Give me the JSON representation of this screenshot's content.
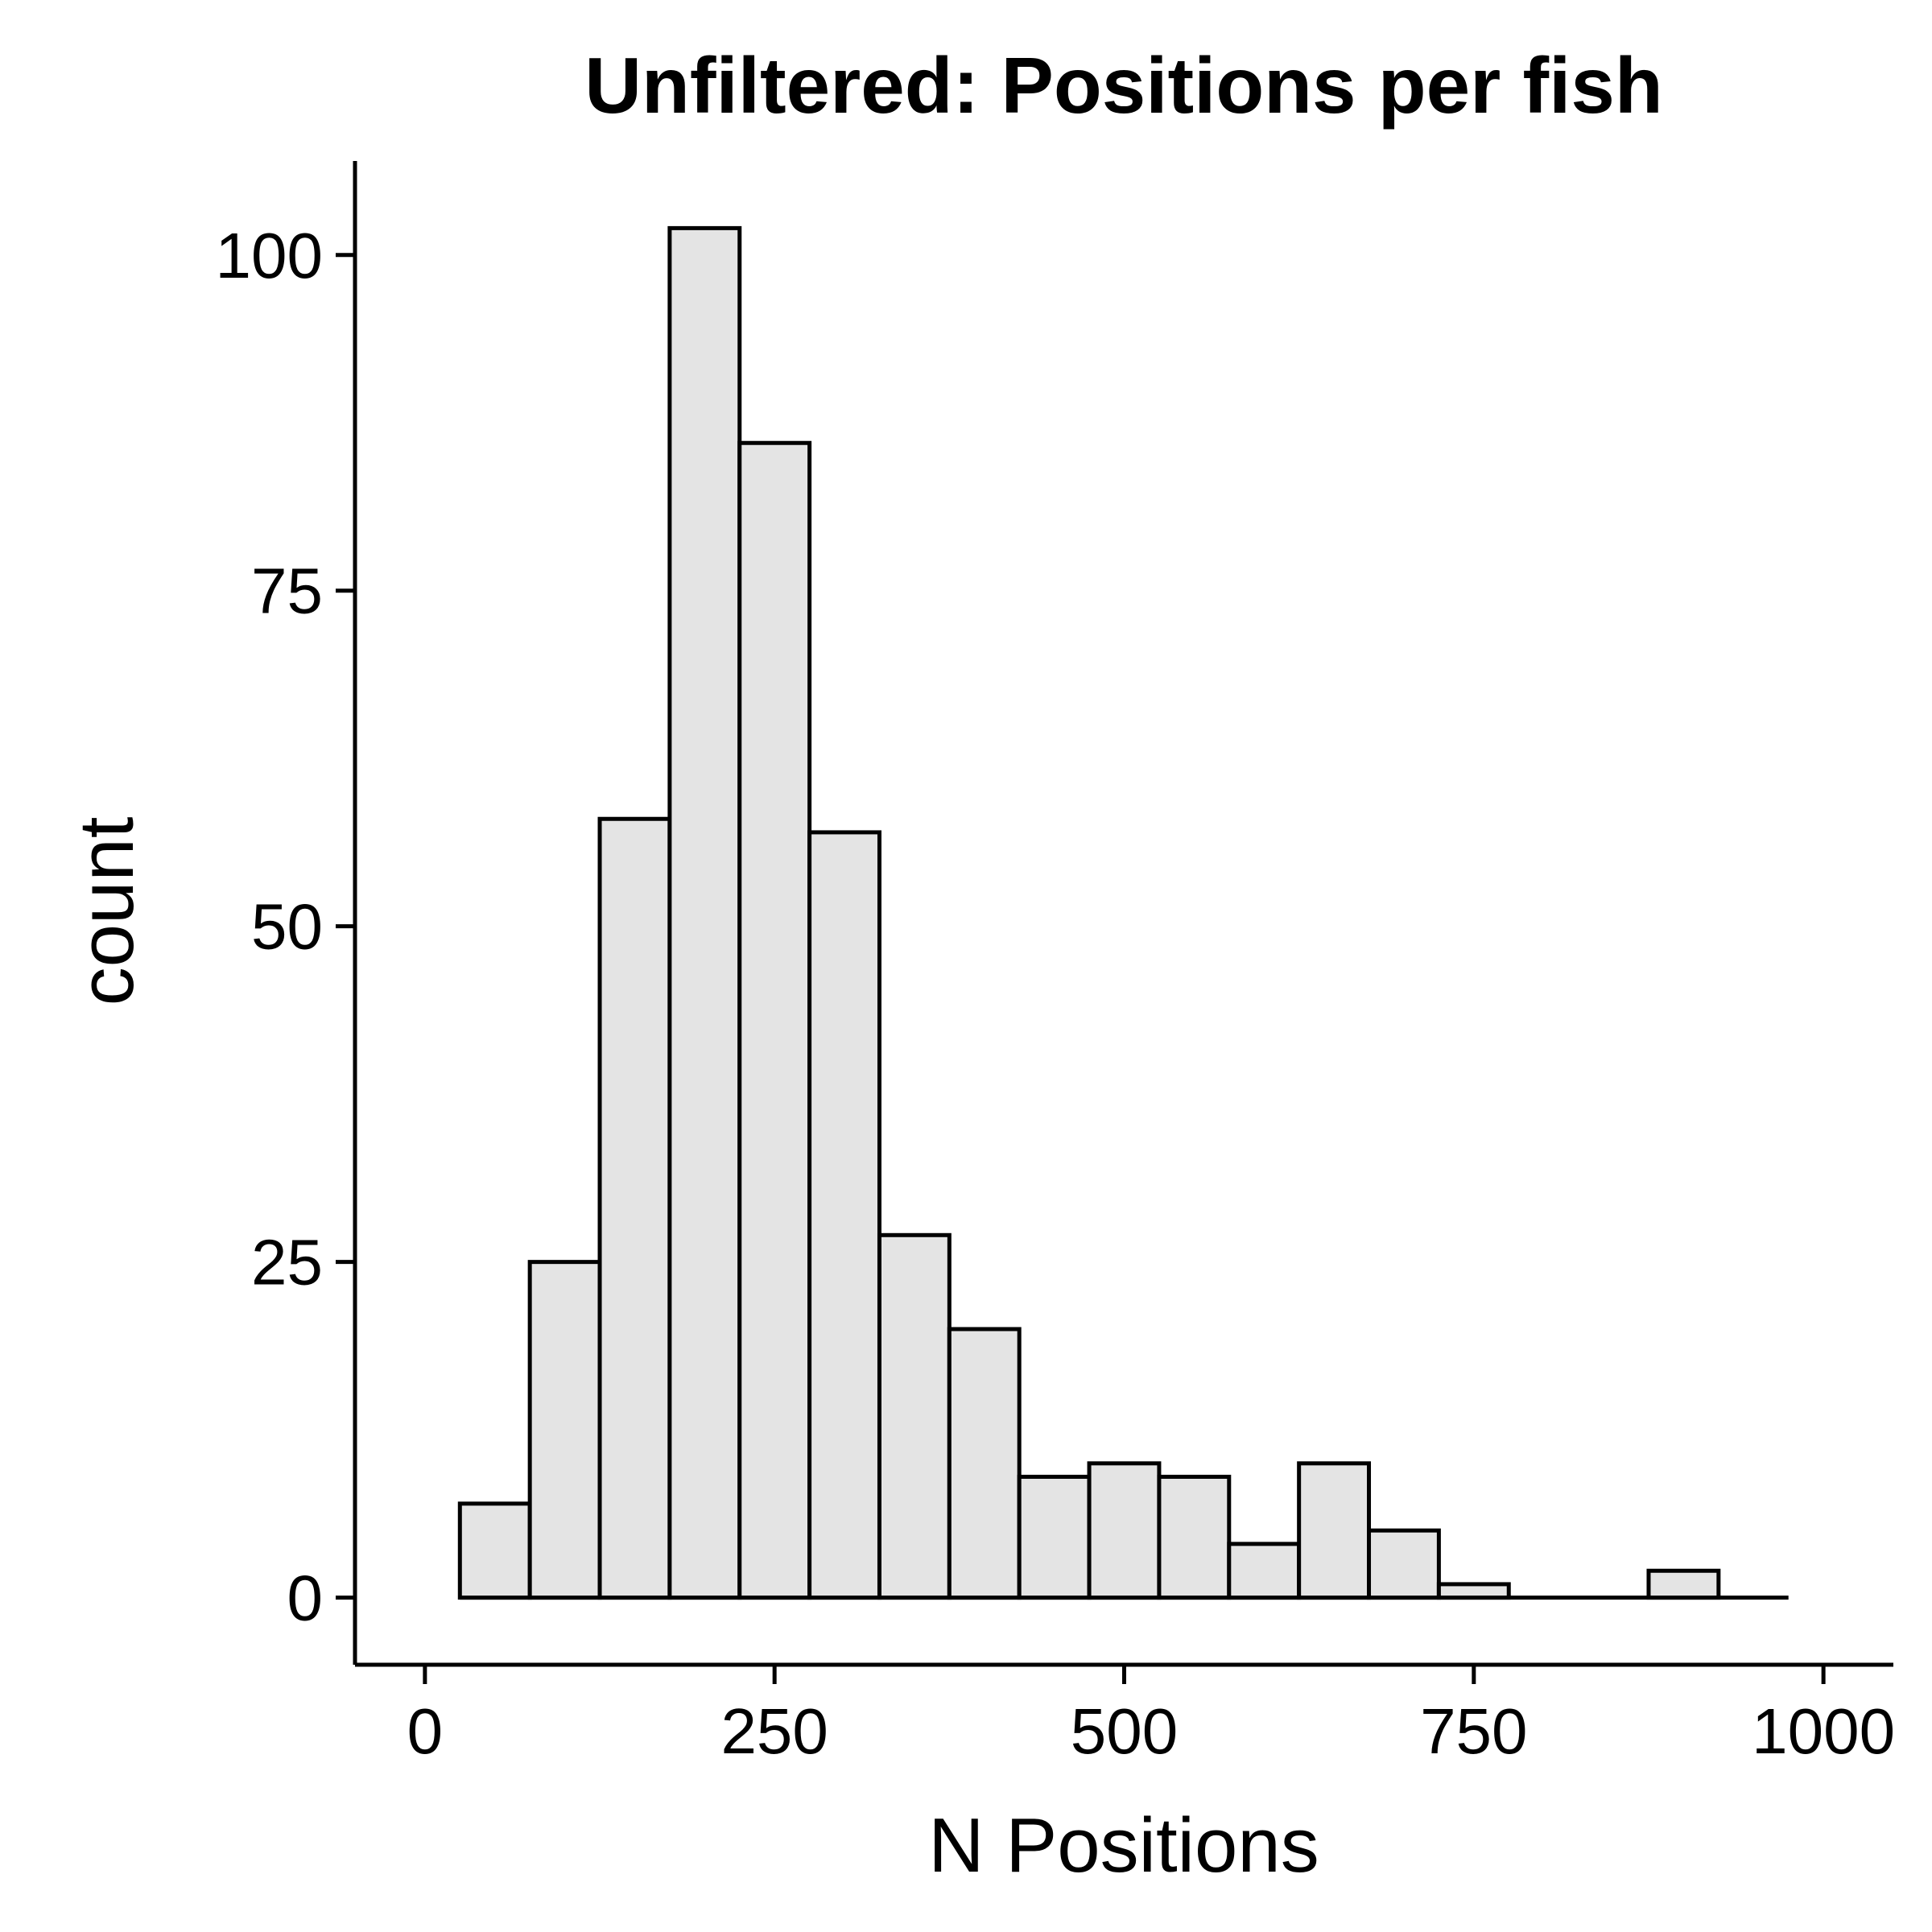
{
  "chart_data": {
    "type": "bar",
    "title": "Unfiltered: Positions per fish",
    "xlabel": "N Positions",
    "ylabel": "count",
    "xlim": [
      -50,
      1050
    ],
    "ylim": [
      -5,
      107
    ],
    "bin_width": 50,
    "x_ticks": [
      0,
      250,
      500,
      750,
      1000
    ],
    "y_ticks": [
      0,
      25,
      50,
      75,
      100
    ],
    "bar_fill": "#e4e4e4",
    "bar_stroke": "#000000",
    "grid": false,
    "bins": [
      {
        "start": 25,
        "end": 75,
        "count": 7
      },
      {
        "start": 75,
        "end": 125,
        "count": 25
      },
      {
        "start": 125,
        "end": 175,
        "count": 58
      },
      {
        "start": 175,
        "end": 225,
        "count": 102
      },
      {
        "start": 225,
        "end": 275,
        "count": 86
      },
      {
        "start": 275,
        "end": 325,
        "count": 57
      },
      {
        "start": 325,
        "end": 375,
        "count": 27
      },
      {
        "start": 375,
        "end": 425,
        "count": 20
      },
      {
        "start": 425,
        "end": 475,
        "count": 9
      },
      {
        "start": 475,
        "end": 525,
        "count": 10
      },
      {
        "start": 525,
        "end": 575,
        "count": 9
      },
      {
        "start": 575,
        "end": 625,
        "count": 4
      },
      {
        "start": 625,
        "end": 675,
        "count": 10
      },
      {
        "start": 675,
        "end": 725,
        "count": 5
      },
      {
        "start": 725,
        "end": 775,
        "count": 1
      },
      {
        "start": 775,
        "end": 825,
        "count": 0
      },
      {
        "start": 825,
        "end": 875,
        "count": 0
      },
      {
        "start": 875,
        "end": 925,
        "count": 2
      },
      {
        "start": 925,
        "end": 975,
        "count": 0
      }
    ]
  }
}
